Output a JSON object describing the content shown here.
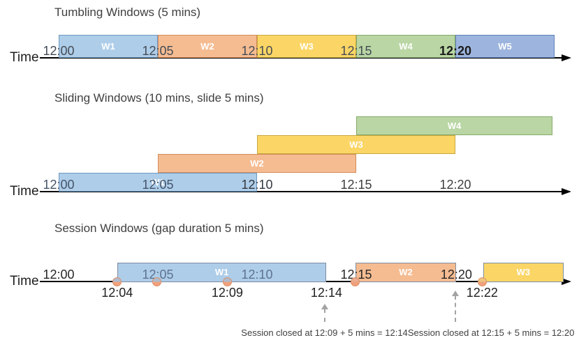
{
  "palette": {
    "blue": {
      "fill": "#AECDE9",
      "border": "#6D98C0"
    },
    "orange": {
      "fill": "#F5BC92",
      "border": "#D28A58"
    },
    "yellow": {
      "fill": "#FBD666",
      "border": "#C7A73F"
    },
    "green": {
      "fill": "#B9D6A4",
      "border": "#85A96B"
    },
    "blue2": {
      "fill": "#9DB5DE",
      "border": "#6080B8"
    },
    "session_border": "#7D8DA3",
    "dot": "#F0A17C",
    "dot_under": {
      "blue": "#AFBCCE",
      "orange": "#E9AC8E",
      "yellow": "#EDC57F"
    },
    "axis": "#000000"
  },
  "sections": [
    {
      "key": "tumbling",
      "title": "Tumbling Windows (5 mins)",
      "time_label": "Time",
      "windows": [
        {
          "name": "W1",
          "start": 0,
          "end": 5,
          "color": "blue"
        },
        {
          "name": "W2",
          "start": 5,
          "end": 10,
          "color": "orange"
        },
        {
          "name": "W3",
          "start": 10,
          "end": 15,
          "color": "yellow"
        },
        {
          "name": "W4",
          "start": 15,
          "end": 20,
          "color": "green"
        },
        {
          "name": "W5",
          "start": 20,
          "end": 25,
          "color": "blue2"
        }
      ],
      "axis_labels": [
        {
          "text": "12:00",
          "min": 0,
          "color": "#454C55"
        },
        {
          "text": "12:05",
          "min": 5,
          "color": "#454C55"
        },
        {
          "text": "12:10",
          "min": 10,
          "color": "#454C55"
        },
        {
          "text": "12:15",
          "min": 15,
          "color": "#454C55"
        },
        {
          "text": "12:20",
          "min": 20,
          "color": "#1C1C1C",
          "strong": true
        }
      ]
    },
    {
      "key": "sliding",
      "title": "Sliding Windows (10 mins, slide 5 mins)",
      "time_label": "Time",
      "windows": [
        {
          "name": "W1",
          "start": 0,
          "end": 10,
          "color": "blue",
          "row": 0
        },
        {
          "name": "W2",
          "start": 5,
          "end": 15,
          "color": "orange",
          "row": 1
        },
        {
          "name": "W3",
          "start": 10,
          "end": 20,
          "color": "yellow",
          "row": 2
        },
        {
          "name": "W4",
          "start": 15,
          "end": 24.9,
          "color": "green",
          "row": 3
        }
      ],
      "axis_labels": [
        {
          "text": "12:00",
          "min": 0,
          "color": "#44546A"
        },
        {
          "text": "12:05",
          "min": 5,
          "color": "#44546A"
        },
        {
          "text": "12:10",
          "min": 10,
          "color": "#33393F"
        },
        {
          "text": "12:15",
          "min": 15,
          "color": "#3F3F3F"
        },
        {
          "text": "12:20",
          "min": 20,
          "color": "#3F3F3F"
        }
      ]
    },
    {
      "key": "session",
      "title": "Session Windows (gap duration 5 mins)",
      "time_label": "Time",
      "windows": [
        {
          "name": "W1",
          "start": 2.95,
          "end": 13.5,
          "color": "blue"
        },
        {
          "name": "W2",
          "start": 14.95,
          "end": 20.05,
          "color": "orange"
        },
        {
          "name": "W3",
          "start": 21.4,
          "end": 25.45,
          "color": "yellow"
        }
      ],
      "events": [
        {
          "min": 2.95,
          "under": "blue"
        },
        {
          "min": 4.95,
          "under": "blue"
        },
        {
          "min": 8.5,
          "under": "blue"
        },
        {
          "min": 14.95,
          "under": "orange"
        },
        {
          "min": 21.35,
          "under": "yellow"
        }
      ],
      "labels_above": [
        {
          "text": "12:00",
          "min": 0,
          "color": "#262626"
        },
        {
          "text": "12:15",
          "min": 15,
          "color": "#262626"
        },
        {
          "text": "12:20",
          "min": 20.05,
          "color": "#262626"
        }
      ],
      "labels_inside": [
        {
          "text": "12:05",
          "min": 5,
          "color": "#5D7290"
        },
        {
          "text": "12:10",
          "min": 10,
          "color": "#5D7290"
        }
      ],
      "labels_below": [
        {
          "text": "12:04",
          "min": 2.95,
          "color": "#1F1F1F"
        },
        {
          "text": "12:09",
          "min": 8.5,
          "color": "#1F1F1F"
        },
        {
          "text": "12:14",
          "min": 13.5,
          "color": "#1F1F1F"
        },
        {
          "text": "12:22",
          "min": 21.35,
          "color": "#1F1F1F"
        }
      ],
      "annotations": [
        {
          "text": "Session closed at 12:09 + 5 mins = 12:14",
          "arrow_min": 13.4,
          "text_min": 13.4
        },
        {
          "text": "Session closed at 12:15 + 5 mins = 12:20",
          "arrow_min": 20.0,
          "text_min": 21.8
        }
      ]
    }
  ]
}
